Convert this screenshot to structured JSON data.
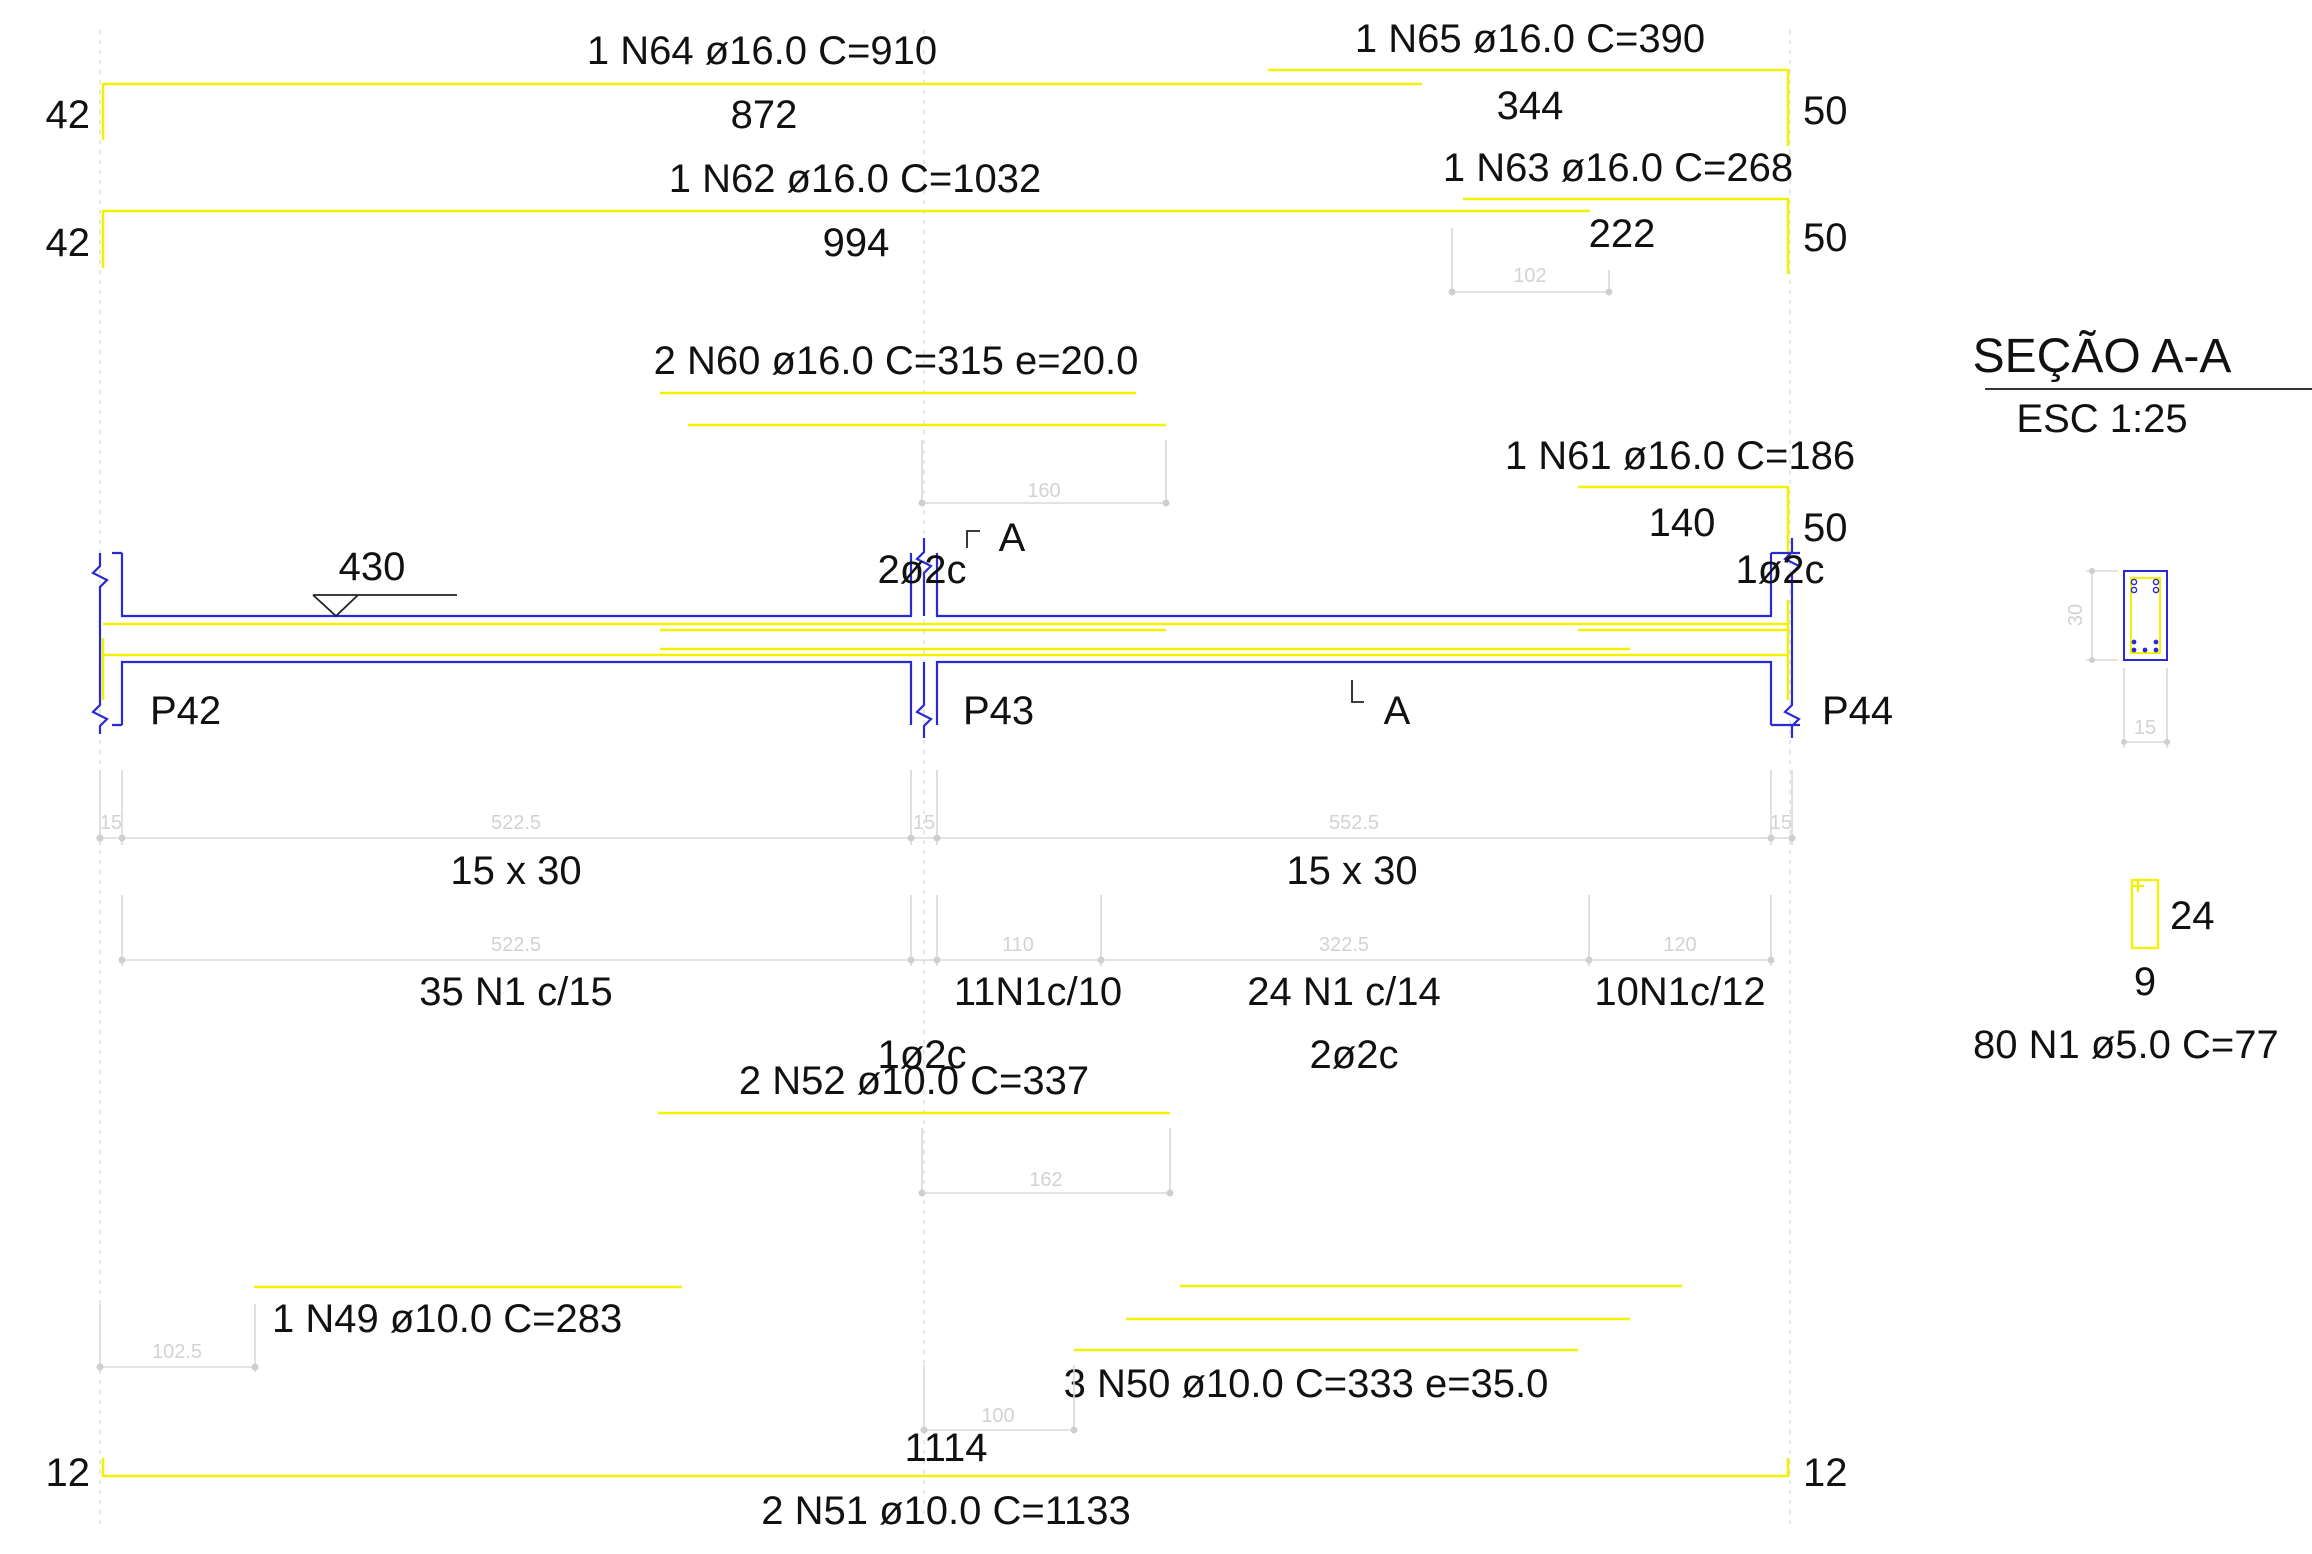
{
  "bars": {
    "n64": {
      "label": "1 N64 ø16.0 C=910",
      "hook": "42",
      "length": "872"
    },
    "n65": {
      "label": "1 N65 ø16.0 C=390",
      "hook": "50",
      "length": "344"
    },
    "n62": {
      "label": "1 N62 ø16.0 C=1032",
      "hook": "42",
      "length": "994"
    },
    "n63": {
      "label": "1 N63 ø16.0 C=268",
      "hook": "50",
      "length": "222",
      "anchor": "102"
    },
    "n60": {
      "label": "2 N60 ø16.0 C=315 e=20.0",
      "anchor": "160"
    },
    "n61": {
      "label": "1 N61 ø16.0 C=186",
      "length": "140",
      "hook": "50"
    },
    "n52": {
      "label": "2 N52 ø10.0 C=337",
      "anchor": "162"
    },
    "n49": {
      "label": "1 N49 ø10.0 C=283",
      "anchor": "102.5"
    },
    "n50": {
      "label": "3 N50 ø10.0 C=333 e=35.0",
      "anchor": "100"
    },
    "n51": {
      "label": "2 N51 ø10.0 C=1133",
      "length": "1114",
      "hook_left": "12",
      "hook_right": "12"
    }
  },
  "beam": {
    "level": "430",
    "pillars": [
      "P42",
      "P43",
      "P44"
    ],
    "section_mark": "A",
    "bar_counts": {
      "p43": "2ø2c",
      "p44": "1ø2c"
    },
    "spans": {
      "widths": [
        "15",
        "522.5",
        "15",
        "552.5",
        "15"
      ],
      "section_left": "15 x 30",
      "section_right": "15 x 30"
    },
    "stirrups": {
      "dims": [
        "522.5",
        "110",
        "322.5",
        "120"
      ],
      "labels": [
        "35 N1 c/15",
        "11N1c/10",
        "24 N1 c/14",
        "10N1c/12"
      ],
      "extra_left": "1ø2c",
      "extra_mid": "2ø2c"
    }
  },
  "section": {
    "title": "SEÇÃO A-A",
    "scale": "ESC 1:25",
    "height": "30",
    "width": "15"
  },
  "stirrup_detail": {
    "height": "24",
    "width": "9",
    "label": "80 N1 ø5.0 C=77"
  },
  "colors": {
    "rebar": "#f2f200",
    "beam_outline": "#2a2ad4",
    "dimension": "#d2d2d2",
    "text": "#111111"
  }
}
